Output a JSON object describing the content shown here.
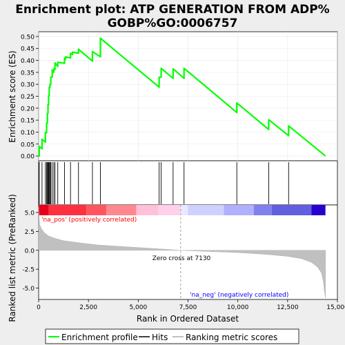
{
  "chart_data": {
    "type": "line",
    "title_line1": "Enrichment plot: ATP GENERATION FROM ADP%",
    "title_line2": "GOBP%GO:0006757",
    "colors": {
      "enrichment": "#00ff00",
      "hits": "#000000",
      "metric": "#c0c0c0",
      "zero_cross": "#a0a0a0",
      "pos_label": "#ff0000",
      "neg_label": "#0000ff",
      "background": "#eeeeee",
      "panel": "#ffffff"
    },
    "upper_panel": {
      "ylabel": "Enrichment score (ES)",
      "ylim": [
        -0.02,
        0.52
      ],
      "yticks": [
        0.0,
        0.05,
        0.1,
        0.15,
        0.2,
        0.25,
        0.3,
        0.35,
        0.4,
        0.45,
        0.5
      ],
      "ytick_labels": [
        "0.00",
        "0.05",
        "0.10",
        "0.15",
        "0.20",
        "0.25",
        "0.30",
        "0.35",
        "0.40",
        "0.45",
        "0.50"
      ],
      "series": [
        {
          "x": [
            0,
            30,
            30,
            170,
            170,
            340,
            340,
            400,
            400,
            440,
            440,
            470,
            470,
            500,
            500,
            530,
            530,
            570,
            570,
            610,
            610,
            680,
            680,
            760,
            760,
            820,
            820,
            960,
            960,
            1300,
            1300,
            1350,
            1350,
            1600,
            1600,
            1700,
            1700,
            2000,
            2000,
            2700,
            2700,
            3100,
            3100,
            6050,
            6050,
            6150,
            6150,
            6750,
            6750,
            7300,
            7300,
            9950,
            9950,
            11550,
            11550,
            12550,
            12550,
            14400
          ],
          "y": [
            0.0,
            0.0,
            0.04,
            0.03,
            0.07,
            0.058,
            0.098,
            0.098,
            0.138,
            0.138,
            0.178,
            0.178,
            0.215,
            0.215,
            0.252,
            0.252,
            0.288,
            0.288,
            0.3,
            0.3,
            0.33,
            0.33,
            0.36,
            0.35,
            0.365,
            0.362,
            0.39,
            0.375,
            0.392,
            0.388,
            0.41,
            0.405,
            0.415,
            0.41,
            0.43,
            0.425,
            0.435,
            0.43,
            0.447,
            0.397,
            0.437,
            0.415,
            0.493,
            0.288,
            0.33,
            0.33,
            0.367,
            0.325,
            0.365,
            0.325,
            0.367,
            0.182,
            0.222,
            0.111,
            0.152,
            0.085,
            0.126,
            0.0
          ]
        }
      ]
    },
    "hits": [
      30,
      170,
      340,
      400,
      440,
      470,
      500,
      530,
      570,
      610,
      680,
      760,
      820,
      960,
      1300,
      1600,
      2000,
      2700,
      3100,
      6050,
      6150,
      6750,
      7300,
      9950,
      11550,
      12550
    ],
    "lower_panel": {
      "ylabel": "Ranked list metric (PreRanked)",
      "ylim": [
        -6.5,
        6.0
      ],
      "yticks": [
        5.0,
        2.5,
        0.0,
        -2.5,
        -5.0
      ],
      "ytick_labels": [
        "5.0",
        "2.5",
        "0.0",
        "-2.5",
        "-5.0"
      ],
      "metric_points": {
        "x": [
          0,
          50,
          150,
          300,
          500,
          800,
          1200,
          2000,
          3000,
          4500,
          6000,
          7130,
          8500,
          10000,
          11500,
          12500,
          13200,
          13700,
          14000,
          14200,
          14300,
          14350,
          14400
        ],
        "y": [
          5.7,
          3.4,
          2.8,
          2.3,
          1.9,
          1.6,
          1.3,
          1.0,
          0.7,
          0.45,
          0.2,
          0.0,
          -0.15,
          -0.3,
          -0.55,
          -0.8,
          -1.1,
          -1.6,
          -2.2,
          -3.0,
          -4.2,
          -5.5,
          -6.3
        ]
      },
      "zero_cross_x": 7130,
      "zero_cross_label": "Zero cross at 7130",
      "pos_label": "'na_pos' (positively correlated)",
      "neg_label": "'na_neg' (negatively correlated)"
    },
    "xlabel": "Rank in Ordered Dataset",
    "xlim": [
      0,
      15000
    ],
    "xticks": [
      0,
      2500,
      5000,
      7500,
      10000,
      12500,
      15000
    ],
    "xtick_labels": [
      "0",
      "2,500",
      "5,000",
      "7,500",
      "10,000",
      "12,500",
      "15,000"
    ],
    "heatmap_segments": [
      {
        "from": 0,
        "to": 500,
        "color": "#e8001c"
      },
      {
        "from": 500,
        "to": 2400,
        "color": "#ff3040"
      },
      {
        "from": 2400,
        "to": 3400,
        "color": "#ff5560"
      },
      {
        "from": 3400,
        "to": 4900,
        "color": "#ff8890"
      },
      {
        "from": 4900,
        "to": 6000,
        "color": "#ffc0d8"
      },
      {
        "from": 6000,
        "to": 7100,
        "color": "#ffd0e8"
      },
      {
        "from": 7100,
        "to": 7500,
        "color": "#e8e8ff"
      },
      {
        "from": 7500,
        "to": 9300,
        "color": "#d0d0ff"
      },
      {
        "from": 9300,
        "to": 10800,
        "color": "#b0b0ff"
      },
      {
        "from": 10800,
        "to": 11700,
        "color": "#8080f0"
      },
      {
        "from": 11700,
        "to": 13700,
        "color": "#6060e0"
      },
      {
        "from": 13700,
        "to": 14400,
        "color": "#2800d0"
      }
    ],
    "legend": {
      "placement": "bottom",
      "items": [
        {
          "label": "Enrichment profile",
          "color": "#00ff00"
        },
        {
          "label": "Hits",
          "color": "#000000"
        },
        {
          "label": "Ranking metric scores",
          "color": "#c0c0c0"
        }
      ]
    }
  }
}
